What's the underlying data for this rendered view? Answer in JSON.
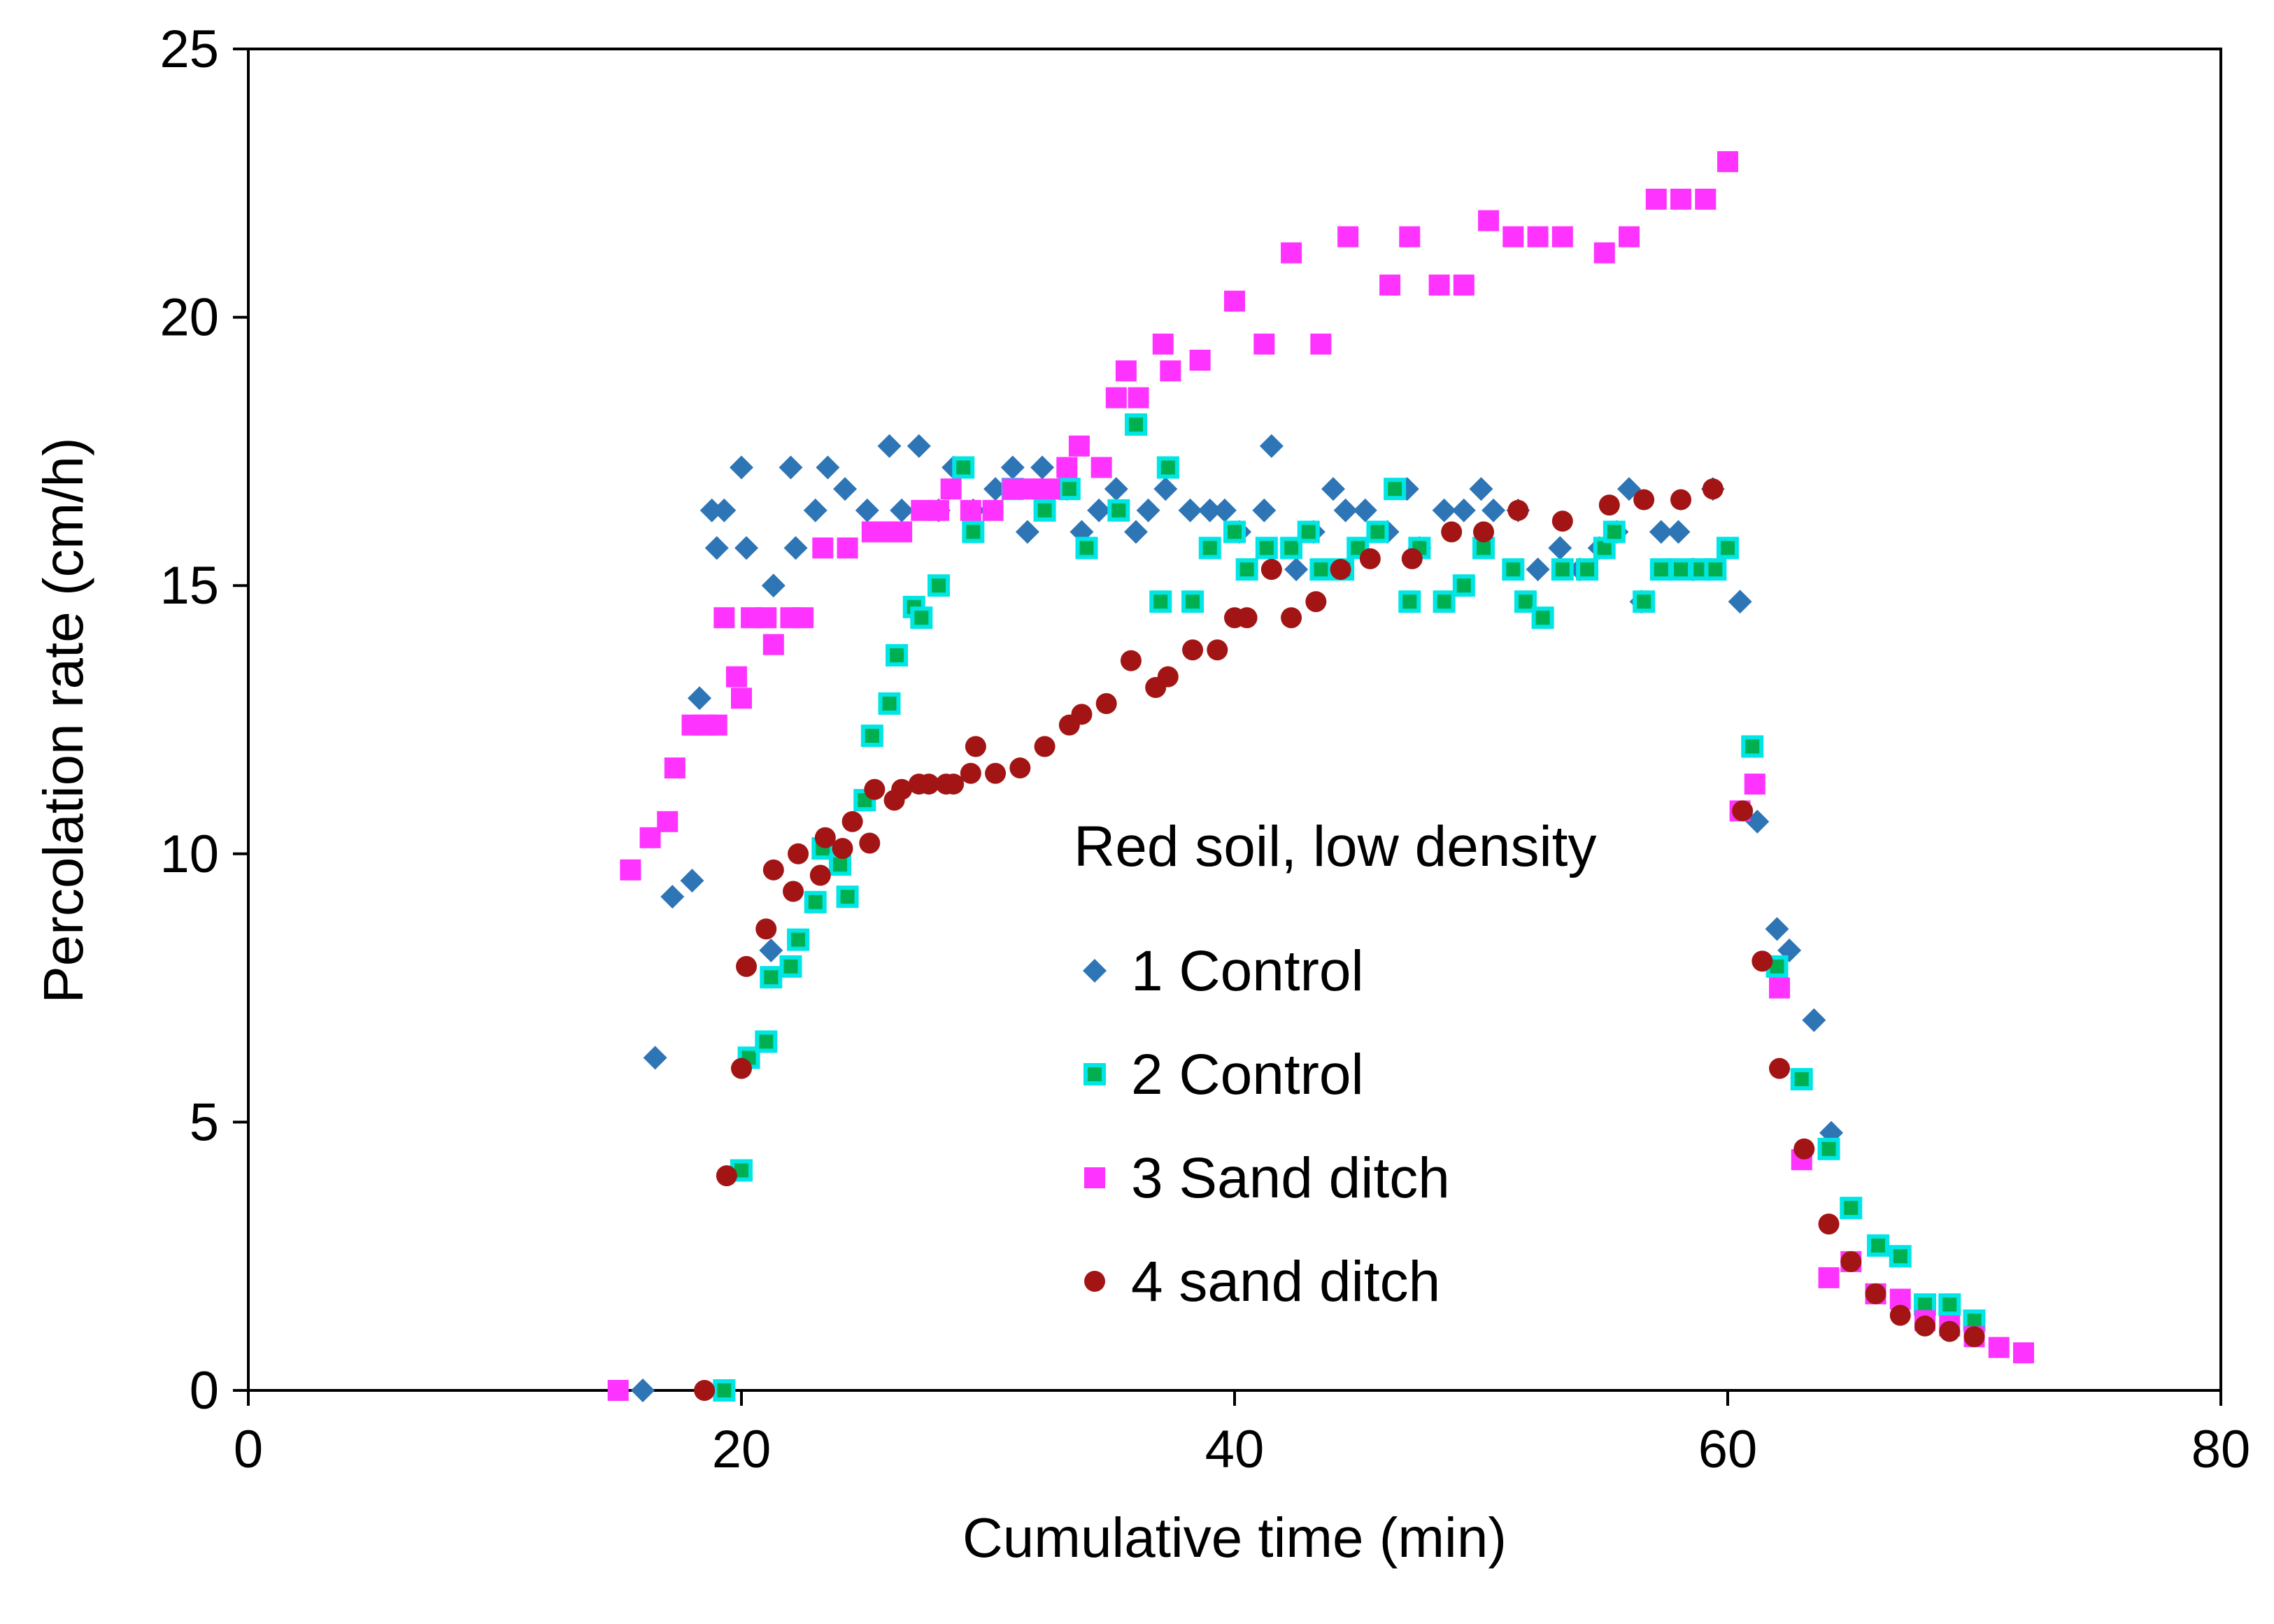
{
  "chart_data": {
    "type": "scatter",
    "title": "",
    "xlabel": "Cumulative time (min)",
    "ylabel": "Percolation  rate (cm/h)",
    "xlim": [
      0,
      80
    ],
    "ylim": [
      0,
      25
    ],
    "xticks": [
      0,
      20,
      40,
      60,
      80
    ],
    "yticks": [
      0,
      5,
      10,
      15,
      20,
      25
    ],
    "grid": false,
    "legend": {
      "title": "Red soil, low density",
      "placement": "center-right"
    },
    "series": [
      {
        "name": "1 Control",
        "marker": "diamond",
        "color": "#2e75b6",
        "points": [
          [
            16,
            0
          ],
          [
            16.5,
            6.2
          ],
          [
            17.2,
            9.2
          ],
          [
            18,
            9.5
          ],
          [
            18.3,
            12.9
          ],
          [
            18.8,
            16.4
          ],
          [
            19,
            15.7
          ],
          [
            19.3,
            16.4
          ],
          [
            20,
            17.2
          ],
          [
            20.2,
            15.7
          ],
          [
            21.2,
            8.2
          ],
          [
            21.3,
            15.0
          ],
          [
            22,
            17.2
          ],
          [
            22.2,
            15.7
          ],
          [
            23,
            16.4
          ],
          [
            23.5,
            17.2
          ],
          [
            24.2,
            16.8
          ],
          [
            25.1,
            16.4
          ],
          [
            26,
            17.6
          ],
          [
            26.5,
            16.4
          ],
          [
            27.2,
            17.6
          ],
          [
            28,
            16.4
          ],
          [
            28.6,
            17.2
          ],
          [
            29.4,
            16.4
          ],
          [
            30.3,
            16.8
          ],
          [
            31,
            17.2
          ],
          [
            31.6,
            16.0
          ],
          [
            32.2,
            17.2
          ],
          [
            33.2,
            16.8
          ],
          [
            33.8,
            16.0
          ],
          [
            34.5,
            16.4
          ],
          [
            35.2,
            16.8
          ],
          [
            36,
            16.0
          ],
          [
            36.5,
            16.4
          ],
          [
            37.2,
            16.8
          ],
          [
            38.2,
            16.4
          ],
          [
            39,
            16.4
          ],
          [
            39.6,
            16.4
          ],
          [
            40.2,
            16.0
          ],
          [
            41.2,
            16.4
          ],
          [
            41.5,
            17.6
          ],
          [
            42.5,
            15.3
          ],
          [
            43.2,
            16.0
          ],
          [
            44,
            16.8
          ],
          [
            44.5,
            16.4
          ],
          [
            45.3,
            16.4
          ],
          [
            46.2,
            16.0
          ],
          [
            47,
            16.8
          ],
          [
            47.5,
            15.7
          ],
          [
            48.5,
            16.4
          ],
          [
            49.3,
            16.4
          ],
          [
            50,
            16.8
          ],
          [
            50.5,
            16.4
          ],
          [
            51.5,
            16.4
          ],
          [
            52.3,
            15.3
          ],
          [
            53.2,
            15.7
          ],
          [
            54,
            15.3
          ],
          [
            54.8,
            15.7
          ],
          [
            55.5,
            16.0
          ],
          [
            56,
            16.8
          ],
          [
            56.5,
            14.7
          ],
          [
            57.3,
            16.0
          ],
          [
            58,
            16.0
          ],
          [
            58.6,
            15.3
          ],
          [
            59.4,
            16.8
          ],
          [
            60.5,
            14.7
          ],
          [
            61.2,
            10.6
          ],
          [
            62,
            8.6
          ],
          [
            62.5,
            8.2
          ],
          [
            63.5,
            6.9
          ],
          [
            64.2,
            4.8
          ]
        ]
      },
      {
        "name": "2 Control",
        "marker": "square-outline",
        "color": "#00b050",
        "edgecolor": "#00e5e5",
        "points": [
          [
            19.3,
            0
          ],
          [
            20,
            4.1
          ],
          [
            20.3,
            6.2
          ],
          [
            21,
            6.5
          ],
          [
            21.2,
            7.7
          ],
          [
            22,
            7.9
          ],
          [
            22.3,
            8.4
          ],
          [
            23,
            9.1
          ],
          [
            23.3,
            10.1
          ],
          [
            24,
            9.8
          ],
          [
            24.3,
            9.2
          ],
          [
            25,
            11.0
          ],
          [
            25.3,
            12.2
          ],
          [
            26,
            12.8
          ],
          [
            26.3,
            13.7
          ],
          [
            27,
            14.6
          ],
          [
            27.3,
            14.4
          ],
          [
            28,
            15.0
          ],
          [
            29,
            17.2
          ],
          [
            29.4,
            16.0
          ],
          [
            31,
            16.8
          ],
          [
            32.3,
            16.4
          ],
          [
            33.3,
            16.8
          ],
          [
            34,
            15.7
          ],
          [
            35.3,
            16.4
          ],
          [
            36,
            18.0
          ],
          [
            37,
            14.7
          ],
          [
            37.3,
            17.2
          ],
          [
            38.3,
            14.7
          ],
          [
            39,
            15.7
          ],
          [
            40,
            16.0
          ],
          [
            40.5,
            15.3
          ],
          [
            41.3,
            15.7
          ],
          [
            42.3,
            15.7
          ],
          [
            43,
            16.0
          ],
          [
            43.5,
            15.3
          ],
          [
            44.4,
            15.3
          ],
          [
            45,
            15.7
          ],
          [
            45.8,
            16.0
          ],
          [
            46.5,
            16.8
          ],
          [
            47.1,
            14.7
          ],
          [
            47.5,
            15.7
          ],
          [
            48.5,
            14.7
          ],
          [
            49.3,
            15.0
          ],
          [
            50.1,
            15.7
          ],
          [
            51.3,
            15.3
          ],
          [
            51.8,
            14.7
          ],
          [
            52.5,
            14.4
          ],
          [
            53.3,
            15.3
          ],
          [
            54.3,
            15.3
          ],
          [
            55,
            15.7
          ],
          [
            55.4,
            16.0
          ],
          [
            56.6,
            14.7
          ],
          [
            57.3,
            15.3
          ],
          [
            58.1,
            15.3
          ],
          [
            58.9,
            15.3
          ],
          [
            59.5,
            15.3
          ],
          [
            60,
            15.7
          ],
          [
            61,
            12.0
          ],
          [
            62,
            7.9
          ],
          [
            63,
            5.8
          ],
          [
            64.1,
            4.5
          ],
          [
            65,
            3.4
          ],
          [
            66.1,
            2.7
          ],
          [
            67,
            2.5
          ],
          [
            68,
            1.6
          ],
          [
            69,
            1.6
          ],
          [
            70,
            1.3
          ]
        ]
      },
      {
        "name": "3 Sand ditch",
        "marker": "square",
        "color": "#ff33ff",
        "points": [
          [
            15,
            0
          ],
          [
            15.5,
            9.7
          ],
          [
            16.3,
            10.3
          ],
          [
            17,
            10.6
          ],
          [
            17.3,
            11.6
          ],
          [
            18,
            12.4
          ],
          [
            18.5,
            12.4
          ],
          [
            19,
            12.4
          ],
          [
            19.3,
            14.4
          ],
          [
            19.8,
            13.3
          ],
          [
            20,
            12.9
          ],
          [
            20.4,
            14.4
          ],
          [
            21,
            14.4
          ],
          [
            21.3,
            13.9
          ],
          [
            22,
            14.4
          ],
          [
            22.5,
            14.4
          ],
          [
            23.3,
            15.7
          ],
          [
            24.3,
            15.7
          ],
          [
            25.3,
            16.0
          ],
          [
            26,
            16.0
          ],
          [
            26.5,
            16.0
          ],
          [
            27.3,
            16.4
          ],
          [
            28,
            16.4
          ],
          [
            28.5,
            16.8
          ],
          [
            29.3,
            16.4
          ],
          [
            30.2,
            16.4
          ],
          [
            31,
            16.8
          ],
          [
            31.7,
            16.8
          ],
          [
            32.5,
            16.8
          ],
          [
            33.2,
            17.2
          ],
          [
            33.7,
            17.6
          ],
          [
            34.6,
            17.2
          ],
          [
            35.2,
            18.5
          ],
          [
            35.6,
            19.0
          ],
          [
            36.1,
            18.5
          ],
          [
            37.1,
            19.5
          ],
          [
            37.4,
            19.0
          ],
          [
            38.6,
            19.2
          ],
          [
            40,
            20.3
          ],
          [
            41.2,
            19.5
          ],
          [
            42.3,
            21.2
          ],
          [
            43.5,
            19.5
          ],
          [
            44.6,
            21.5
          ],
          [
            46.3,
            20.6
          ],
          [
            47.1,
            21.5
          ],
          [
            48.3,
            20.6
          ],
          [
            49.3,
            20.6
          ],
          [
            50.3,
            21.8
          ],
          [
            51.3,
            21.5
          ],
          [
            52.3,
            21.5
          ],
          [
            53.3,
            21.5
          ],
          [
            55,
            21.2
          ],
          [
            56,
            21.5
          ],
          [
            57.1,
            22.2
          ],
          [
            58.1,
            22.2
          ],
          [
            59.1,
            22.2
          ],
          [
            60,
            22.9
          ],
          [
            60.5,
            10.8
          ],
          [
            61.1,
            11.3
          ],
          [
            62.1,
            7.5
          ],
          [
            63,
            4.3
          ],
          [
            64.1,
            2.1
          ],
          [
            65,
            2.4
          ],
          [
            66,
            1.8
          ],
          [
            67,
            1.7
          ],
          [
            68,
            1.3
          ],
          [
            69,
            1.2
          ],
          [
            70,
            1.0
          ],
          [
            71,
            0.8
          ],
          [
            72,
            0.7
          ]
        ]
      },
      {
        "name": "4 sand ditch",
        "marker": "circle",
        "color": "#a31515",
        "points": [
          [
            18.5,
            0
          ],
          [
            19.4,
            4.0
          ],
          [
            20,
            6.0
          ],
          [
            20.2,
            7.9
          ],
          [
            21,
            8.6
          ],
          [
            21.3,
            9.7
          ],
          [
            22.1,
            9.3
          ],
          [
            22.3,
            10.0
          ],
          [
            23.2,
            9.6
          ],
          [
            23.4,
            10.3
          ],
          [
            24.1,
            10.1
          ],
          [
            24.5,
            10.6
          ],
          [
            25.2,
            10.2
          ],
          [
            25.4,
            11.2
          ],
          [
            26.2,
            11.0
          ],
          [
            26.5,
            11.2
          ],
          [
            27.2,
            11.3
          ],
          [
            27.6,
            11.3
          ],
          [
            28.3,
            11.3
          ],
          [
            28.6,
            11.3
          ],
          [
            29.3,
            11.5
          ],
          [
            29.5,
            12.0
          ],
          [
            30.3,
            11.5
          ],
          [
            31.3,
            11.6
          ],
          [
            32.3,
            12.0
          ],
          [
            33.3,
            12.4
          ],
          [
            33.8,
            12.6
          ],
          [
            34.8,
            12.8
          ],
          [
            35.8,
            13.6
          ],
          [
            36.8,
            13.1
          ],
          [
            37.3,
            13.3
          ],
          [
            38.3,
            13.8
          ],
          [
            39.3,
            13.8
          ],
          [
            40,
            14.4
          ],
          [
            40.5,
            14.4
          ],
          [
            41.5,
            15.3
          ],
          [
            42.3,
            14.4
          ],
          [
            43.3,
            14.7
          ],
          [
            44.3,
            15.3
          ],
          [
            45.5,
            15.5
          ],
          [
            47.2,
            15.5
          ],
          [
            48.8,
            16.0
          ],
          [
            50.1,
            16.0
          ],
          [
            51.5,
            16.4
          ],
          [
            53.3,
            16.2
          ],
          [
            55.2,
            16.5
          ],
          [
            56.6,
            16.6
          ],
          [
            58.1,
            16.6
          ],
          [
            59.4,
            16.8
          ],
          [
            60.6,
            10.8
          ],
          [
            61.4,
            8.0
          ],
          [
            62.1,
            6.0
          ],
          [
            63.1,
            4.5
          ],
          [
            64.1,
            3.1
          ],
          [
            65,
            2.4
          ],
          [
            66,
            1.8
          ],
          [
            67,
            1.4
          ],
          [
            68,
            1.2
          ],
          [
            69,
            1.1
          ],
          [
            70,
            1.0
          ]
        ]
      }
    ]
  }
}
